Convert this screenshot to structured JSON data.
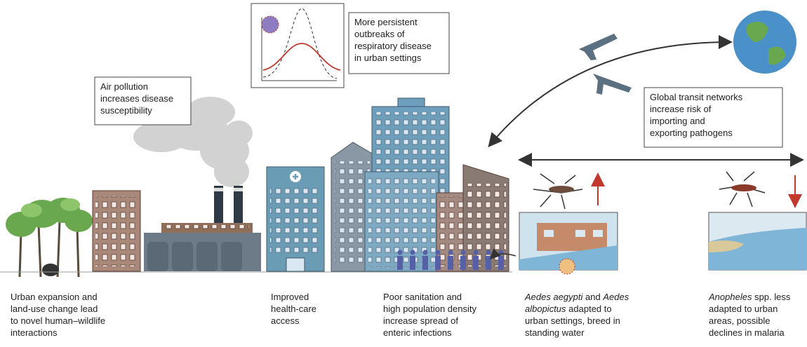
{
  "callouts": [
    {
      "lines": [
        "More persistent",
        "outbreaks of",
        "respiratory disease",
        "in urban settings"
      ]
    },
    {
      "lines": [
        "Air pollution",
        "increases disease",
        "susceptibility"
      ]
    },
    {
      "lines": [
        "Global transit networks",
        "increase risk of",
        "importing and",
        "exporting pathogens"
      ]
    }
  ],
  "captions": [
    {
      "lines": [
        "Urban expansion and",
        "land-use change lead",
        "to novel human–wildlife",
        "interactions"
      ]
    },
    {
      "lines": [
        "Improved",
        "health-care",
        "access"
      ]
    },
    {
      "lines": [
        "Poor sanitation and",
        "high population density",
        "increase spread of",
        "enteric infections"
      ]
    },
    {
      "lines": [
        [
          {
            "text": "Aedes aegypti",
            "italic": true
          },
          {
            "text": " and "
          },
          {
            "text": "Aedes",
            "italic": true
          }
        ],
        [
          {
            "text": "albopictus",
            "italic": true
          },
          {
            "text": " adapted to"
          }
        ],
        "urban settings, breed in",
        "standing water"
      ]
    },
    {
      "lines": [
        [
          {
            "text": "Anopheles",
            "italic": true
          },
          {
            "text": " spp. less"
          }
        ],
        "adapted to urban",
        "areas, possible",
        "declines in malaria"
      ]
    }
  ]
}
